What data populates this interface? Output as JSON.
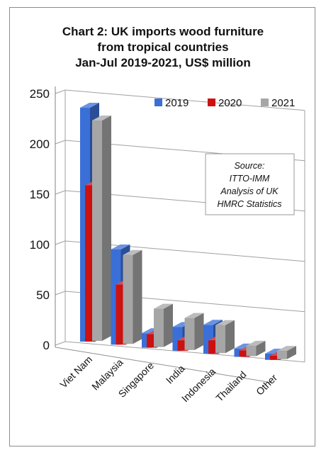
{
  "chart_data": {
    "type": "bar",
    "title_lines": [
      "Chart 2: UK imports wood furniture",
      "from tropical countries",
      "Jan-Jul 2019-2021, US$ million"
    ],
    "categories": [
      "Viet Nam",
      "Malaysia",
      "Singapore",
      "India",
      "Indonesia",
      "Thailand",
      "Other"
    ],
    "series": [
      {
        "name": "2019",
        "color": "#3a6fd8",
        "values": [
          226,
          92,
          14,
          23,
          28,
          8,
          6
        ]
      },
      {
        "name": "2020",
        "color": "#cc1111",
        "values": [
          151,
          58,
          13,
          10,
          13,
          6,
          4
        ]
      },
      {
        "name": "2021",
        "color": "#a6a6a6",
        "values": [
          213,
          86,
          37,
          31,
          27,
          10,
          8
        ]
      }
    ],
    "y_ticks": [
      "0",
      "50",
      "100",
      "150",
      "200",
      "250"
    ],
    "ylim": [
      0,
      250
    ],
    "grid": true,
    "legend_position": "top-right",
    "source_lines": [
      "Source:",
      "ITTO-IMM",
      "Analysis of UK",
      "HMRC Statistics"
    ]
  }
}
